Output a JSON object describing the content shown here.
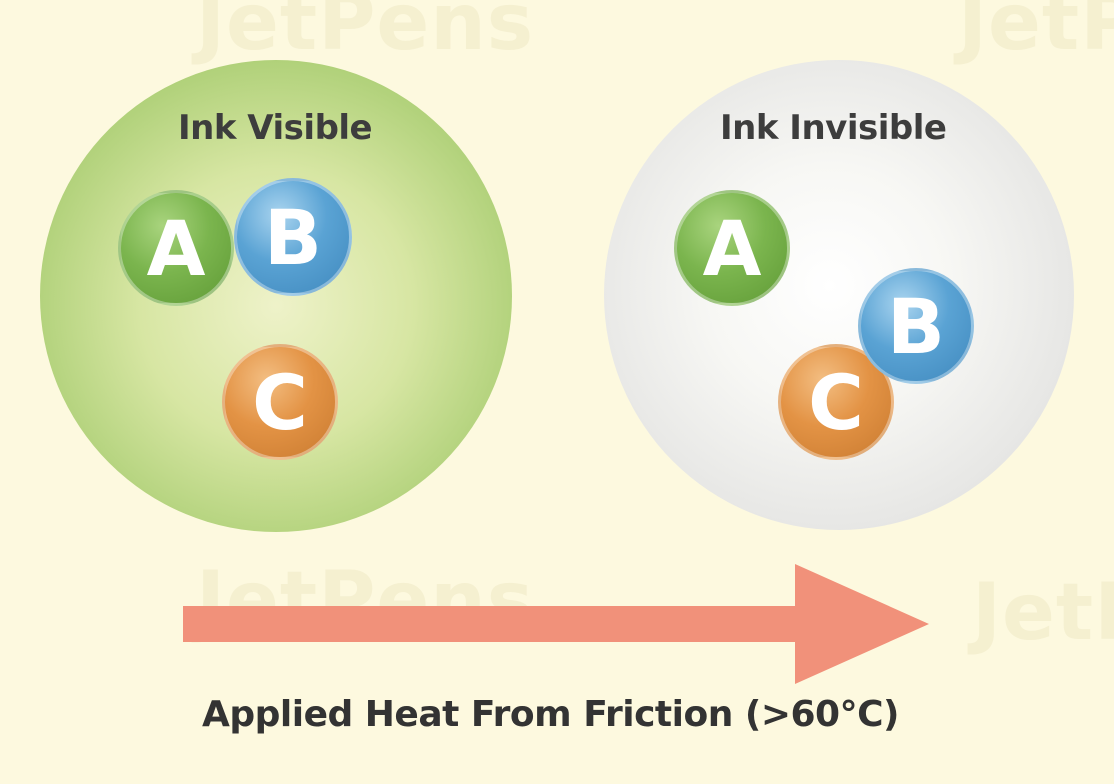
{
  "watermark": "JetPens",
  "states": {
    "visible": {
      "label": "Ink Visible",
      "circle_color": "#b8d788",
      "particles": [
        "A",
        "B",
        "C"
      ]
    },
    "invisible": {
      "label": "Ink Invisible",
      "circle_color": "#ebebea",
      "particles": [
        "A",
        "B",
        "C"
      ]
    }
  },
  "particle_colors": {
    "A": "#7bb54e",
    "B": "#5aa3d4",
    "C": "#e39345"
  },
  "arrow": {
    "direction": "right",
    "color": "#f1917a"
  },
  "caption": "Applied Heat From Friction (>60°C)"
}
